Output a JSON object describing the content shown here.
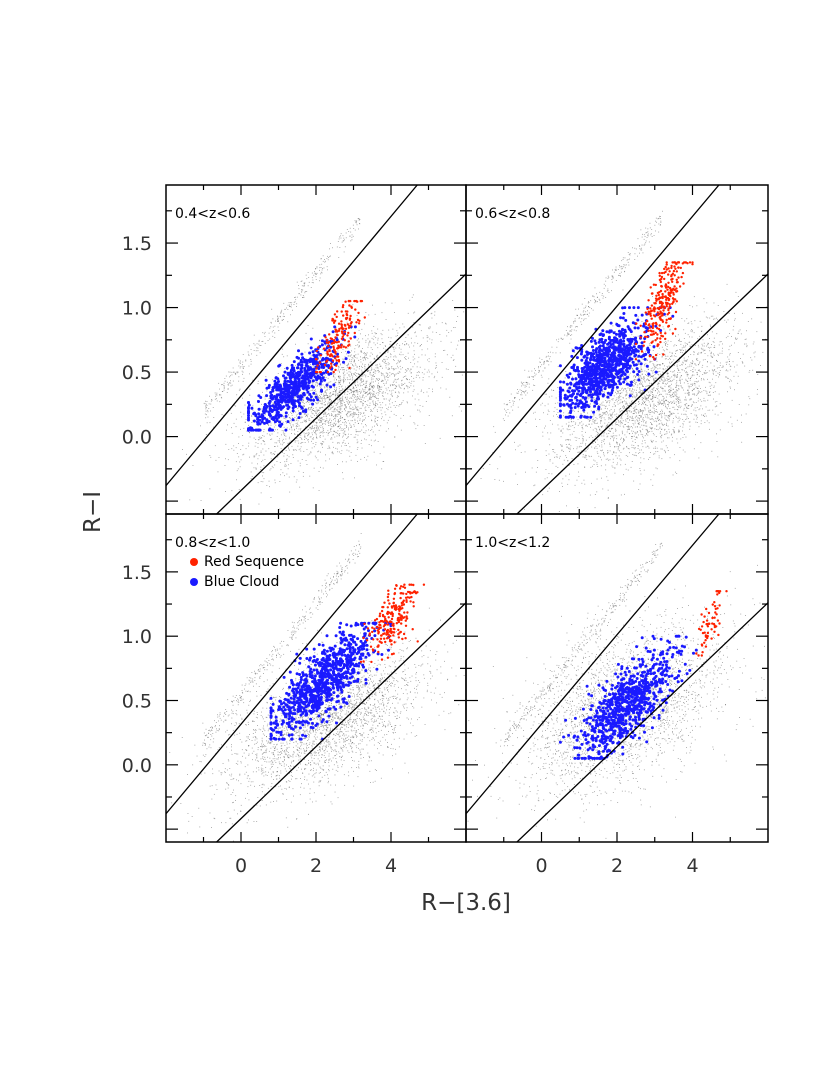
{
  "chart_data": {
    "type": "scatter",
    "layout": "2x2 grid of panels with shared axes",
    "xlabel": "R−[3.6]",
    "ylabel": "R−I",
    "xlim": [
      -2,
      6
    ],
    "ylim": [
      -0.6,
      1.95
    ],
    "xticks": [
      0,
      2,
      4
    ],
    "xticklabels": [
      "0",
      "2",
      "4"
    ],
    "yticks": [
      0.0,
      0.5,
      1.0,
      1.5
    ],
    "yticklabels": [
      "0.0",
      "0.5",
      "1.0",
      "1.5"
    ],
    "legend": {
      "placement": "top-left of lower-left panel",
      "entries": [
        {
          "label": "Red Sequence",
          "color": "#ff2200"
        },
        {
          "label": "Blue Cloud",
          "color": "#1a1aff"
        }
      ]
    },
    "series_colors": {
      "background": "#555555",
      "red": "#ff2200",
      "blue": "#1a1aff"
    },
    "boundary_lines": [
      {
        "x": [
          -2.0,
          4.7
        ],
        "y": [
          -0.38,
          1.95
        ]
      },
      {
        "x": [
          -0.65,
          6.0
        ],
        "y": [
          -0.6,
          1.26
        ]
      }
    ],
    "panels": [
      {
        "label": "0.4<z<0.6",
        "background": {
          "center": [
            2.6,
            0.3
          ],
          "spread": [
            1.3,
            0.22
          ],
          "count": 3000
        },
        "red": {
          "center": [
            2.6,
            0.78
          ],
          "spread": [
            0.32,
            0.1
          ],
          "count": 160,
          "range_x": [
            2.0,
            3.3
          ],
          "range_y": [
            0.5,
            1.05
          ]
        },
        "blue": {
          "center": [
            1.4,
            0.38
          ],
          "spread": [
            0.55,
            0.1
          ],
          "count": 650,
          "range_x": [
            0.2,
            3.2
          ],
          "range_y": [
            0.05,
            0.85
          ]
        }
      },
      {
        "label": "0.6<z<0.8",
        "background": {
          "center": [
            2.7,
            0.3
          ],
          "spread": [
            1.3,
            0.24
          ],
          "count": 3000
        },
        "red": {
          "center": [
            3.25,
            1.05
          ],
          "spread": [
            0.28,
            0.14
          ],
          "count": 260,
          "range_x": [
            2.5,
            4.0
          ],
          "range_y": [
            0.6,
            1.35
          ]
        },
        "blue": {
          "center": [
            1.7,
            0.55
          ],
          "spread": [
            0.55,
            0.13
          ],
          "count": 900,
          "range_x": [
            0.5,
            4.2
          ],
          "range_y": [
            0.15,
            1.0
          ]
        }
      },
      {
        "label": "0.8<z<1.0",
        "background": {
          "center": [
            2.2,
            0.35
          ],
          "spread": [
            1.3,
            0.24
          ],
          "count": 3000
        },
        "red": {
          "center": [
            4.05,
            1.15
          ],
          "spread": [
            0.32,
            0.11
          ],
          "count": 220,
          "range_x": [
            3.2,
            4.9
          ],
          "range_y": [
            0.8,
            1.4
          ]
        },
        "blue": {
          "center": [
            2.2,
            0.65
          ],
          "spread": [
            0.65,
            0.13
          ],
          "count": 900,
          "range_x": [
            0.8,
            4.0
          ],
          "range_y": [
            0.2,
            1.1
          ]
        }
      },
      {
        "label": "1.0<z<1.2",
        "background": {
          "center": [
            2.2,
            0.45
          ],
          "spread": [
            1.3,
            0.28
          ],
          "count": 3000
        },
        "red": {
          "center": [
            4.5,
            1.12
          ],
          "spread": [
            0.18,
            0.1
          ],
          "count": 60,
          "range_x": [
            4.1,
            4.9
          ],
          "range_y": [
            0.85,
            1.35
          ]
        },
        "blue": {
          "center": [
            2.3,
            0.48
          ],
          "spread": [
            0.65,
            0.14
          ],
          "count": 800,
          "range_x": [
            0.5,
            4.1
          ],
          "range_y": [
            0.05,
            1.0
          ]
        }
      }
    ]
  }
}
